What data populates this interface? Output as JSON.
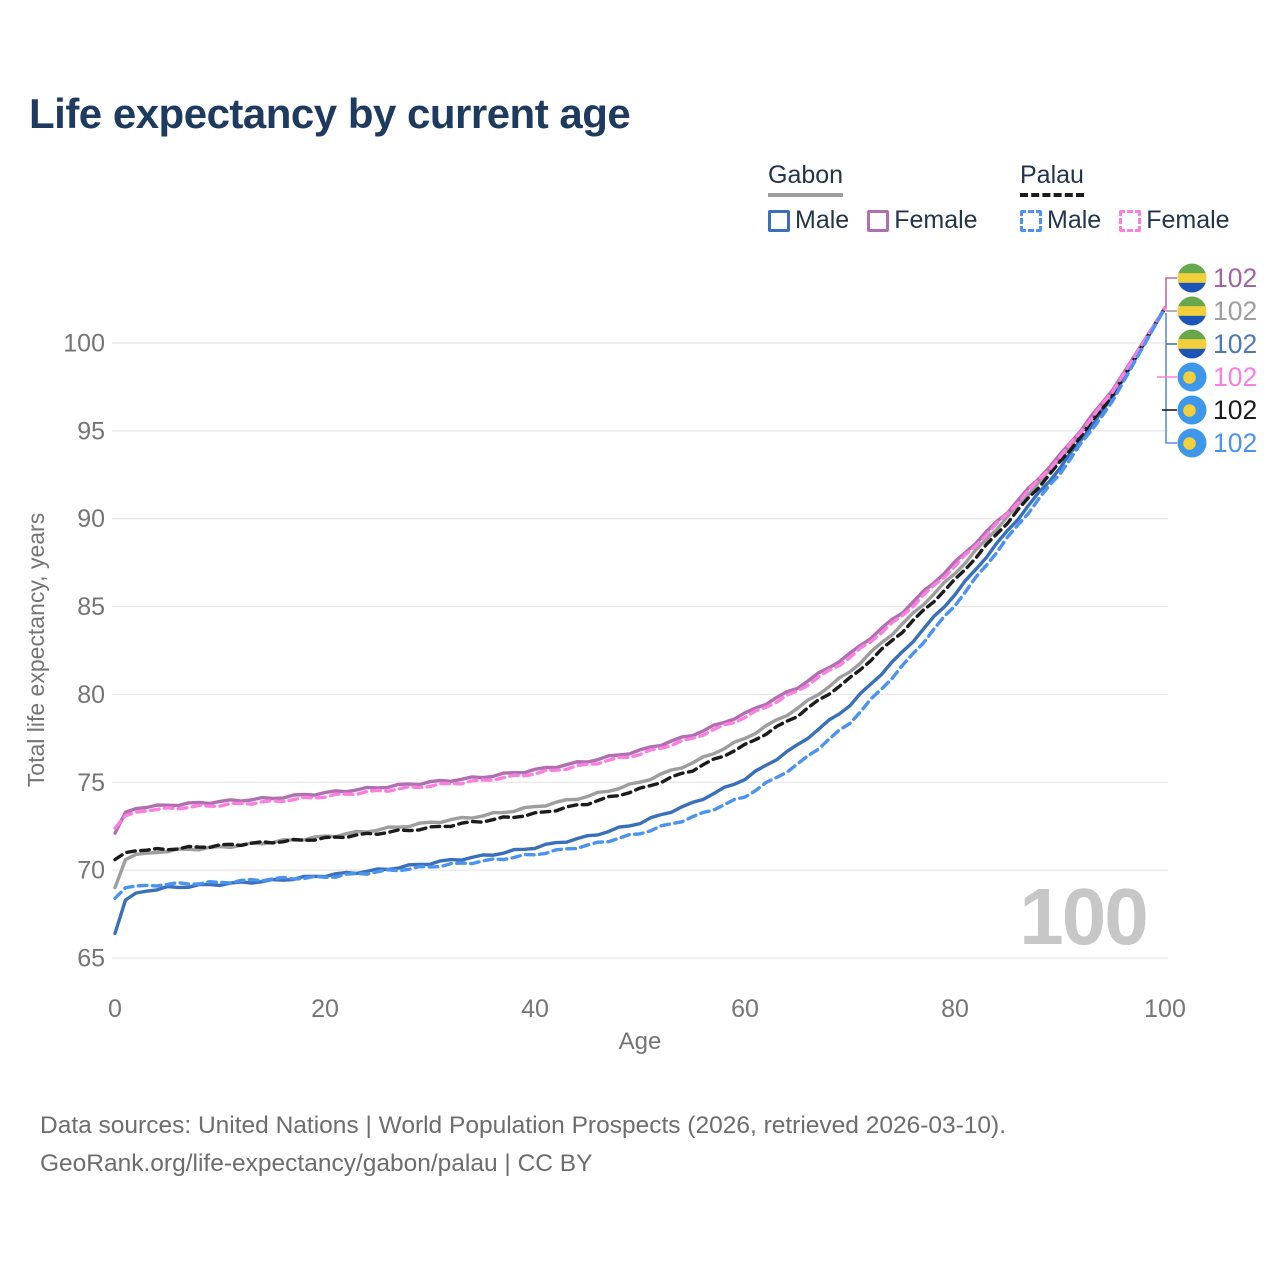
{
  "header": {
    "title": "Life expectancy by current age"
  },
  "legend": {
    "groups": [
      {
        "name": "Gabon",
        "line_style": "solid",
        "underline_color": "#9e9e9e",
        "items": [
          {
            "label": "Male",
            "color": "#3a70b9",
            "dashed": false
          },
          {
            "label": "Female",
            "color": "#b06fb0",
            "dashed": false
          }
        ]
      },
      {
        "name": "Palau",
        "line_style": "dashed",
        "underline_color": "#1c1c1c",
        "items": [
          {
            "label": "Male",
            "color": "#4b93f2",
            "dashed": true
          },
          {
            "label": "Female",
            "color": "#fb7ee0",
            "dashed": true
          }
        ]
      }
    ]
  },
  "chart_data": {
    "type": "line",
    "title": "Life expectancy by current age",
    "xlabel": "Age",
    "ylabel": "Total life expectancy, years",
    "xlim": [
      0,
      100
    ],
    "ylim": [
      65,
      103
    ],
    "x_ticks": [
      0,
      20,
      40,
      60,
      80,
      100
    ],
    "y_ticks": [
      65,
      70,
      75,
      80,
      85,
      90,
      95,
      100
    ],
    "grid": "horizontal",
    "legend_position": "top-right",
    "x": [
      0,
      1,
      2,
      5,
      10,
      15,
      20,
      25,
      30,
      35,
      40,
      45,
      50,
      55,
      60,
      65,
      70,
      75,
      80,
      85,
      90,
      95,
      100
    ],
    "series": [
      {
        "name": "Gabon Female",
        "country": "Gabon",
        "sex": "Female",
        "color": "#b06fb0",
        "dash": false,
        "end_label": "102",
        "values": [
          72.1,
          73.3,
          73.5,
          73.7,
          73.9,
          74.1,
          74.4,
          74.7,
          75.0,
          75.3,
          75.7,
          76.2,
          76.8,
          77.7,
          78.9,
          80.4,
          82.3,
          84.7,
          87.5,
          90.4,
          93.6,
          97.3,
          102
        ]
      },
      {
        "name": "Gabon Total",
        "country": "Gabon",
        "sex": "Total",
        "color": "#9e9e9e",
        "dash": false,
        "end_label": "102",
        "values": [
          69.0,
          70.6,
          70.9,
          71.1,
          71.3,
          71.6,
          71.9,
          72.3,
          72.7,
          73.1,
          73.6,
          74.2,
          75.0,
          76.1,
          77.5,
          79.2,
          81.3,
          84.0,
          86.9,
          90.1,
          93.4,
          97.1,
          102
        ]
      },
      {
        "name": "Gabon Male",
        "country": "Gabon",
        "sex": "Male",
        "color": "#3a70b9",
        "dash": false,
        "end_label": "102",
        "values": [
          66.4,
          68.3,
          68.7,
          69.0,
          69.2,
          69.4,
          69.7,
          70.0,
          70.4,
          70.8,
          71.3,
          71.9,
          72.7,
          73.8,
          75.2,
          77.1,
          79.4,
          82.4,
          85.7,
          89.3,
          92.9,
          96.9,
          102
        ]
      },
      {
        "name": "Palau Total",
        "country": "Palau",
        "sex": "Total",
        "color": "#1c1c1c",
        "dash": true,
        "end_label": "102",
        "values": [
          70.6,
          71.0,
          71.1,
          71.2,
          71.4,
          71.6,
          71.8,
          72.1,
          72.4,
          72.8,
          73.2,
          73.8,
          74.6,
          75.7,
          77.1,
          78.8,
          80.9,
          83.6,
          86.5,
          89.8,
          93.2,
          97.0,
          102
        ]
      },
      {
        "name": "Palau Male",
        "country": "Palau",
        "sex": "Male",
        "color": "#4b93f2",
        "dash": true,
        "end_label": "102",
        "values": [
          68.4,
          69.0,
          69.1,
          69.2,
          69.3,
          69.5,
          69.6,
          69.9,
          70.2,
          70.5,
          70.9,
          71.4,
          72.1,
          73.0,
          74.2,
          76.0,
          78.4,
          81.6,
          85.1,
          88.9,
          92.6,
          96.7,
          102
        ]
      },
      {
        "name": "Palau Female",
        "country": "Palau",
        "sex": "Female",
        "color": "#fb7ee0",
        "dash": true,
        "end_label": "102",
        "values": [
          72.4,
          73.1,
          73.3,
          73.5,
          73.7,
          73.9,
          74.2,
          74.5,
          74.8,
          75.1,
          75.5,
          76.0,
          76.6,
          77.5,
          78.7,
          80.2,
          82.1,
          84.5,
          87.3,
          90.3,
          93.5,
          97.2,
          102
        ]
      }
    ],
    "annotations": {
      "current_age_watermark": "100"
    }
  },
  "end_labels": [
    {
      "value": "102",
      "series": "Gabon Female",
      "flag": "gabon",
      "color": "#a563a5"
    },
    {
      "value": "102",
      "series": "Gabon Total",
      "flag": "gabon",
      "color": "#9e9e9e"
    },
    {
      "value": "102",
      "series": "Gabon Male",
      "flag": "gabon",
      "color": "#4a7ab8"
    },
    {
      "value": "102",
      "series": "Palau Female",
      "flag": "palau",
      "color": "#fb7ee0"
    },
    {
      "value": "102",
      "series": "Palau Total",
      "flag": "palau",
      "color": "#1c1c1c"
    },
    {
      "value": "102",
      "series": "Palau Male",
      "flag": "palau",
      "color": "#4b93f2"
    }
  ],
  "flags": {
    "gabon": {
      "stripes": [
        "#68a84c",
        "#f2cf3c",
        "#1b55b8"
      ]
    },
    "palau": {
      "bg": "#3d97ea",
      "disc": "#f2cf3c"
    }
  },
  "watermark": "100",
  "colors": {
    "title": "#1e3a5f",
    "axis_text": "#757575",
    "gridline": "#e7e7e7",
    "watermark": "#c7c7c7",
    "leader_blue": "#5b8ee0",
    "leader_purple": "#b06fb0"
  },
  "footer": {
    "line1": "Data sources: United Nations | World Population Prospects (2026, retrieved 2026-03-10).",
    "line2": "GeoRank.org/life-expectancy/gabon/palau | CC BY"
  }
}
